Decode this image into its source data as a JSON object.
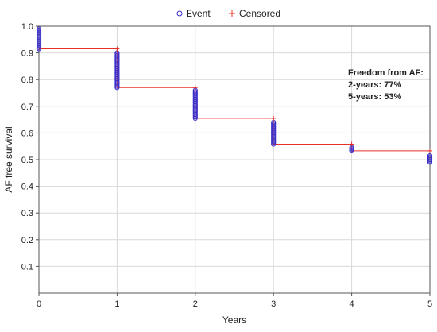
{
  "chart_data": {
    "type": "line",
    "title": "",
    "xlabel": "Years",
    "ylabel": "AF free survival",
    "xlim": [
      0,
      5
    ],
    "ylim": [
      0.0,
      1.0
    ],
    "x_ticks": [
      0,
      1,
      2,
      3,
      4,
      5
    ],
    "x_tick_labels": [
      "0",
      "1",
      "2",
      "3",
      "4",
      "5"
    ],
    "y_ticks": [
      0.1,
      0.2,
      0.3,
      0.4,
      0.5,
      0.6,
      0.7,
      0.8,
      0.9,
      1.0
    ],
    "y_tick_labels": [
      "0.1",
      "0.2",
      "0.3",
      "0.4",
      "0.5",
      "0.6",
      "0.7",
      "0.8",
      "0.9",
      "1.0"
    ],
    "grid": true,
    "legend_position": "top-center",
    "legend": [
      {
        "label": "Event",
        "marker": "circle",
        "color": "#3b2fc9"
      },
      {
        "label": "Censored",
        "marker": "plus",
        "color": "#e8302a"
      }
    ],
    "annotation": {
      "lines": [
        "Freedom from AF:",
        "2-years: 77%",
        "5-years: 53%"
      ]
    },
    "survival_curve": {
      "x": [
        0,
        1,
        2,
        3,
        4,
        5
      ],
      "y": [
        0.915,
        0.77,
        0.655,
        0.558,
        0.533,
        0.533
      ]
    },
    "censored": {
      "x": [
        1,
        2,
        3,
        4,
        5
      ],
      "y": [
        0.915,
        0.77,
        0.655,
        0.558,
        0.533
      ]
    },
    "events": [
      {
        "x": 0,
        "from": 0.99,
        "to": 0.915
      },
      {
        "x": 1,
        "from": 0.9,
        "to": 0.77
      },
      {
        "x": 2,
        "from": 0.76,
        "to": 0.655
      },
      {
        "x": 3,
        "from": 0.64,
        "to": 0.558
      },
      {
        "x": 4,
        "from": 0.545,
        "to": 0.533
      },
      {
        "x": 5,
        "from": 0.515,
        "to": 0.49
      }
    ],
    "colors": {
      "curve": "#e8302a",
      "event": "#3b2fc9",
      "grid": "#d9d9d9",
      "axis": "#555555"
    }
  }
}
